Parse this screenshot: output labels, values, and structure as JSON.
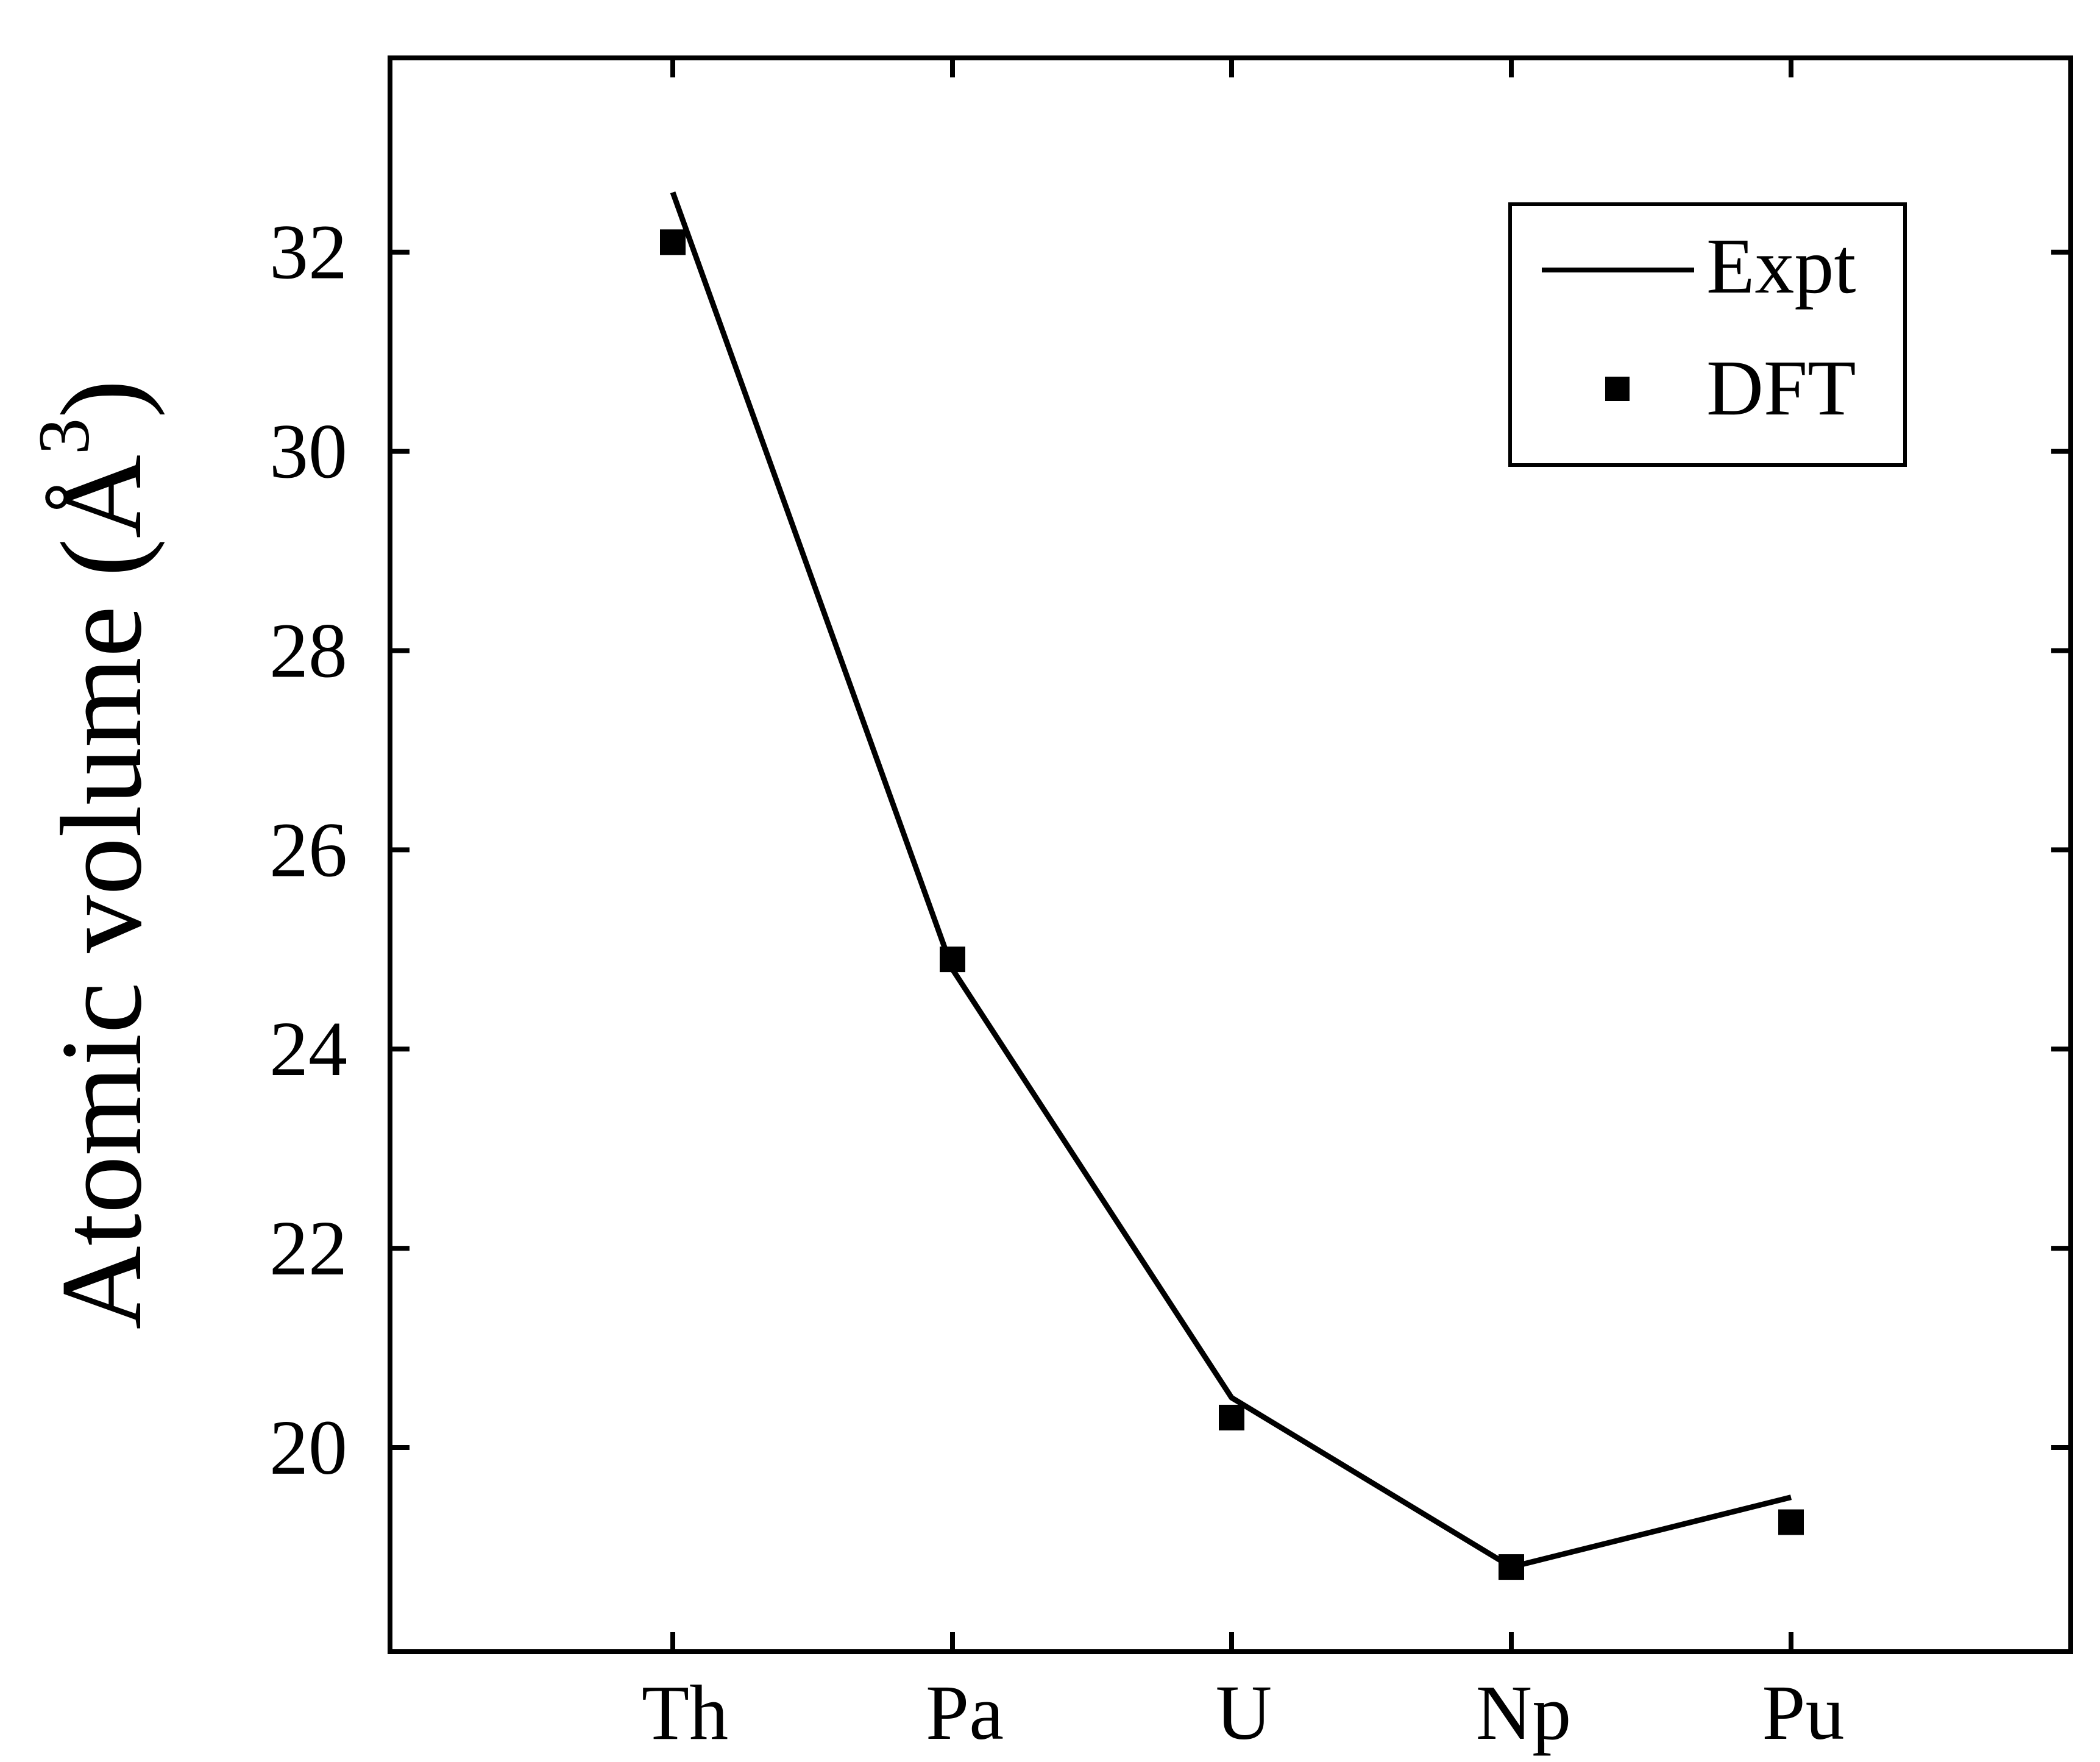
{
  "chart_data": {
    "type": "line",
    "categories": [
      "Th",
      "Pa",
      "U",
      "Np",
      "Pu"
    ],
    "series": [
      {
        "name": "Expt",
        "kind": "line",
        "values": [
          32.6,
          24.8,
          20.5,
          18.8,
          19.5
        ]
      },
      {
        "name": "DFT",
        "kind": "scatter",
        "values": [
          32.1,
          24.9,
          20.3,
          18.8,
          19.25
        ]
      }
    ],
    "title": "",
    "xlabel": "",
    "ylabel": "Atomic volume (Å",
    "ylabel_superscript": "3",
    "ylabel_suffix": ")",
    "ylim": [
      17.95,
      33.95
    ],
    "yticks": [
      20,
      22,
      24,
      26,
      28,
      30,
      32
    ],
    "grid": false,
    "legend_position": "top-right",
    "colors": {
      "line": "#000000",
      "marker": "#000000"
    }
  }
}
